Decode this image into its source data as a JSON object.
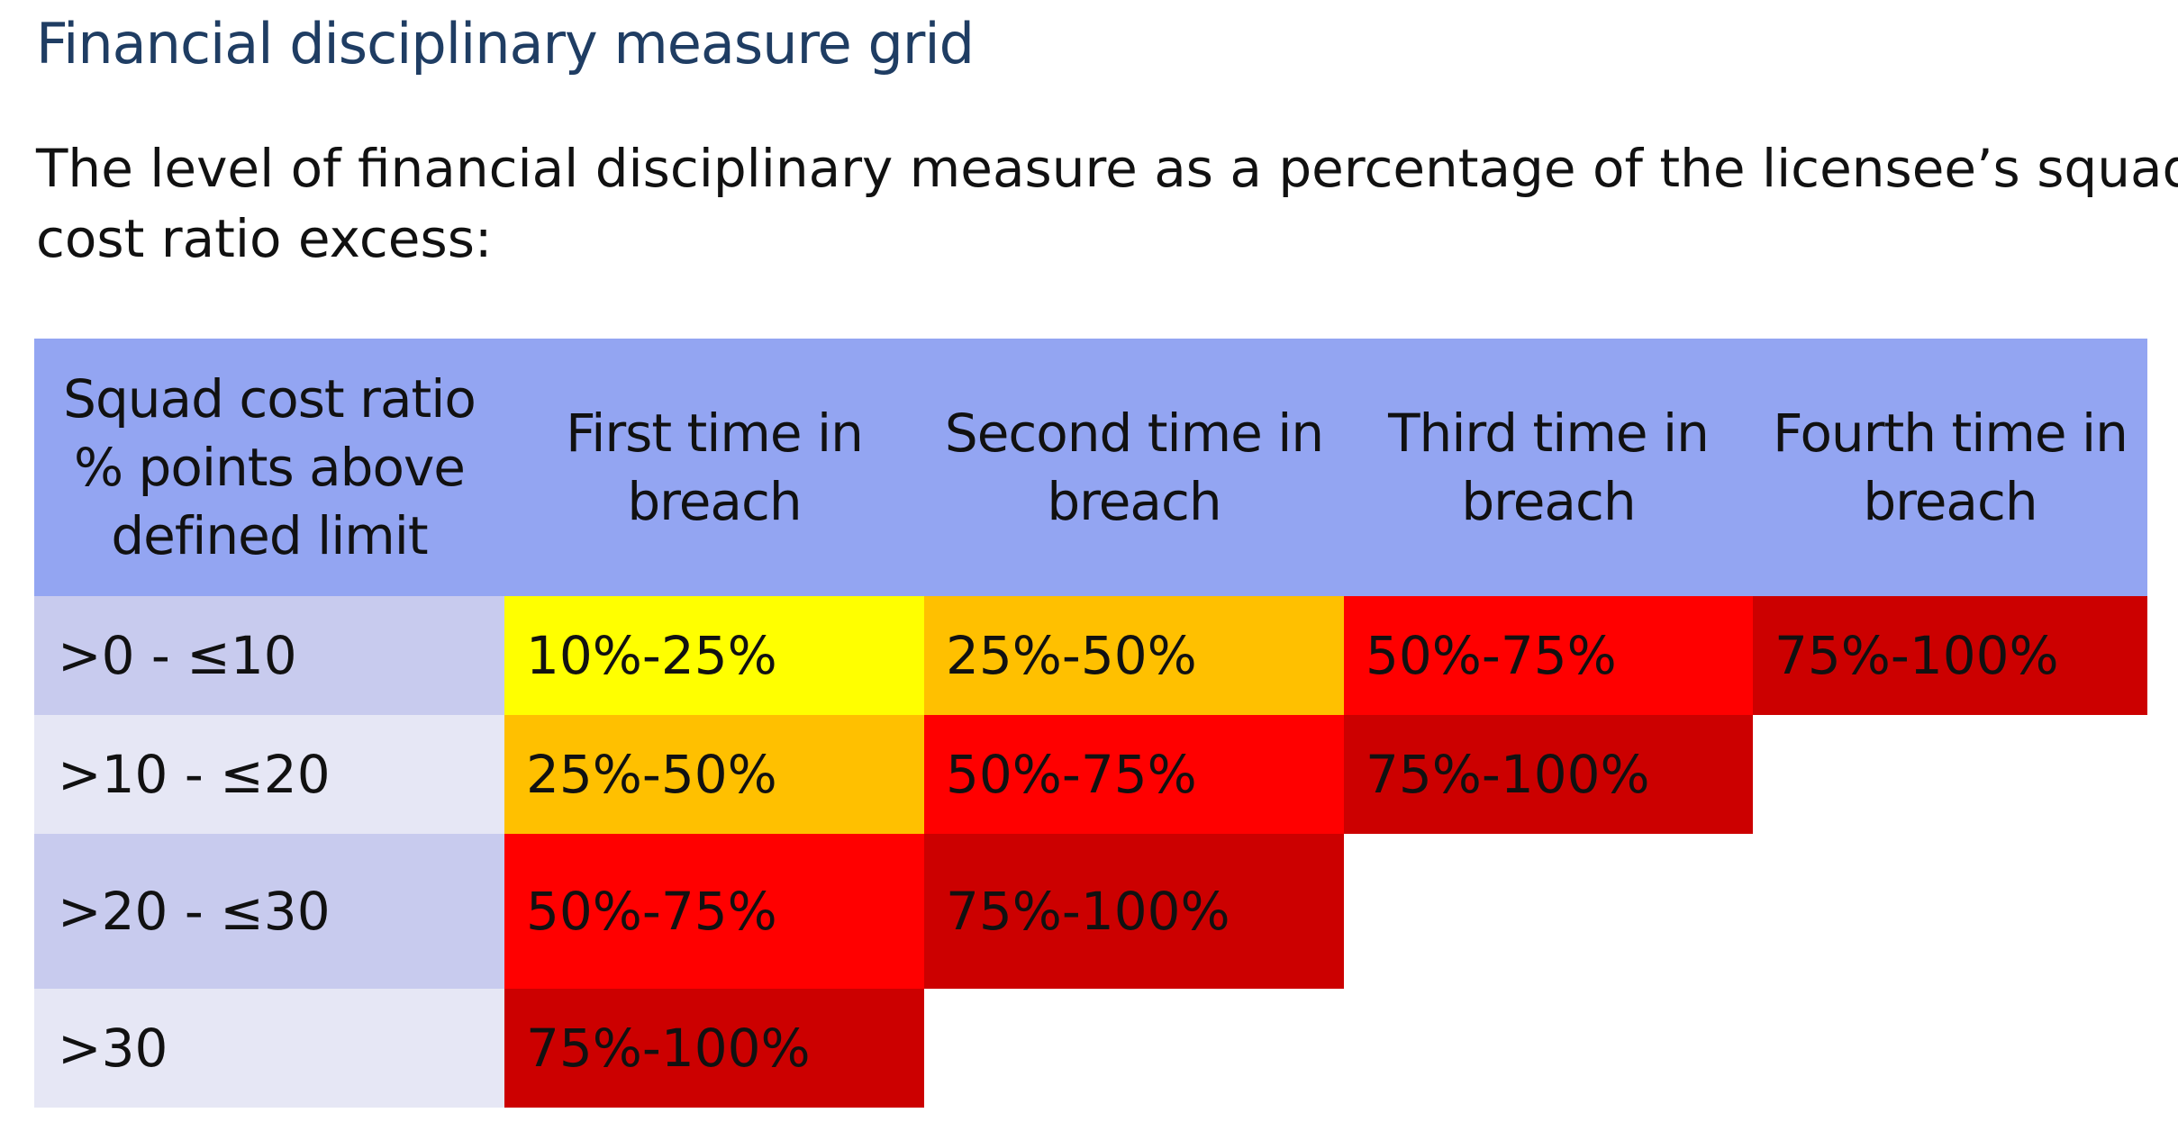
{
  "title": "Financial disciplinary measure grid",
  "intro": {
    "line1": "The level of financial disciplinary measure as a percentage of the licensee’s squad",
    "line2": "cost ratio excess:"
  },
  "table": {
    "header": {
      "col0": [
        "Squad cost ratio",
        "% points above",
        "defined limit"
      ],
      "col1": [
        "First time in",
        "breach"
      ],
      "col2": [
        "Second time in",
        "breach"
      ],
      "col3": [
        "Third time in",
        "breach"
      ],
      "col4": [
        "Fourth time in",
        "breach"
      ]
    },
    "rows": [
      {
        "range": ">0 - ≤10",
        "cells": [
          {
            "value": "10%-25%",
            "color": "#ffff00"
          },
          {
            "value": "25%-50%",
            "color": "#ffc000"
          },
          {
            "value": "50%-75%",
            "color": "#ff0000"
          },
          {
            "value": "75%-100%",
            "color": "#cc0000"
          }
        ]
      },
      {
        "range": ">10 - ≤20",
        "cells": [
          {
            "value": "25%-50%",
            "color": "#ffc000"
          },
          {
            "value": "50%-75%",
            "color": "#ff0000"
          },
          {
            "value": "75%-100%",
            "color": "#cc0000"
          },
          {
            "value": "",
            "color": "#ffffff"
          }
        ]
      },
      {
        "range": ">20 - ≤30",
        "cells": [
          {
            "value": "50%-75%",
            "color": "#ff0000"
          },
          {
            "value": "75%-100%",
            "color": "#cc0000"
          },
          {
            "value": "",
            "color": "#ffffff"
          },
          {
            "value": "",
            "color": "#ffffff"
          }
        ]
      },
      {
        "range": ">30",
        "cells": [
          {
            "value": "75%-100%",
            "color": "#cc0000"
          },
          {
            "value": "",
            "color": "#ffffff"
          },
          {
            "value": "",
            "color": "#ffffff"
          },
          {
            "value": "",
            "color": "#ffffff"
          }
        ]
      }
    ]
  },
  "colors": {
    "title": "#1f3d63",
    "header_bg": "#93a5f2",
    "range_dark_bg": "#c8cbee",
    "range_light_bg": "#e6e7f5"
  }
}
